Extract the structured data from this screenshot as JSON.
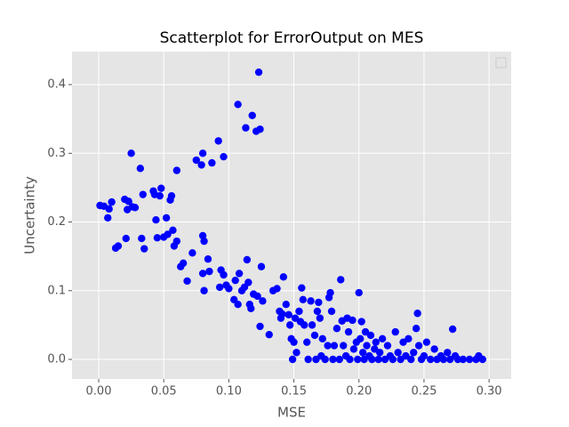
{
  "chart_data": {
    "type": "scatter",
    "title": "Scatterplot for ErrorOutput on MES",
    "x_label": "MSE",
    "y_label": "Uncertainty",
    "color": "#0000ff",
    "grid": true,
    "xlim": [
      -0.0205,
      0.317
    ],
    "ylim": [
      -0.0285,
      0.448
    ],
    "xticks": [
      {
        "value": 0,
        "label": "0.00"
      },
      0.05,
      {
        "value": 0.1,
        "label": "0.10"
      },
      0.15,
      {
        "value": 0.2,
        "label": "0.20"
      },
      0.25,
      {
        "value": 0.3,
        "label": "0.30"
      }
    ],
    "yticks": [
      {
        "value": 0,
        "label": "0.0"
      },
      0.1,
      0.2,
      0.3,
      0.4
    ],
    "x": [
      0.001,
      0.004,
      0.007,
      0.008,
      0.01,
      0.013,
      0.015,
      0.02,
      0.021,
      0.022,
      0.023,
      0.025,
      0.026,
      0.028,
      0.032,
      0.033,
      0.034,
      0.035,
      0.042,
      0.043,
      0.044,
      0.045,
      0.047,
      0.048,
      0.05,
      0.052,
      0.053,
      0.055,
      0.056,
      0.057,
      0.058,
      0.06,
      0.06,
      0.063,
      0.065,
      0.068,
      0.072,
      0.075,
      0.079,
      0.08,
      0.08,
      0.081,
      0.08,
      0.081,
      0.084,
      0.085,
      0.087,
      0.092,
      0.093,
      0.094,
      0.096,
      0.096,
      0.098,
      0.1,
      0.104,
      0.105,
      0.107,
      0.107,
      0.108,
      0.11,
      0.112,
      0.113,
      0.114,
      0.115,
      0.116,
      0.117,
      0.118,
      0.119,
      0.121,
      0.122,
      0.123,
      0.124,
      0.125,
      0.124,
      0.126,
      0.131,
      0.134,
      0.137,
      0.139,
      0.14,
      0.141,
      0.142,
      0.144,
      0.146,
      0.147,
      0.148,
      0.149,
      0.15,
      0.151,
      0.152,
      0.154,
      0.155,
      0.156,
      0.157,
      0.158,
      0.16,
      0.161,
      0.163,
      0.164,
      0.166,
      0.167,
      0.168,
      0.169,
      0.17,
      0.171,
      0.172,
      0.174,
      0.176,
      0.177,
      0.178,
      0.179,
      0.18,
      0.181,
      0.183,
      0.185,
      0.186,
      0.187,
      0.188,
      0.19,
      0.191,
      0.192,
      0.193,
      0.195,
      0.196,
      0.198,
      0.199,
      0.2,
      0.201,
      0.202,
      0.203,
      0.204,
      0.205,
      0.206,
      0.208,
      0.209,
      0.21,
      0.212,
      0.213,
      0.215,
      0.216,
      0.218,
      0.22,
      0.222,
      0.224,
      0.226,
      0.228,
      0.23,
      0.232,
      0.234,
      0.236,
      0.238,
      0.24,
      0.242,
      0.244,
      0.245,
      0.246,
      0.248,
      0.25,
      0.252,
      0.255,
      0.258,
      0.26,
      0.263,
      0.265,
      0.268,
      0.27,
      0.272,
      0.274,
      0.276,
      0.28,
      0.285,
      0.29,
      0.292,
      0.295
    ],
    "values": [
      0.224,
      0.223,
      0.206,
      0.219,
      0.229,
      0.162,
      0.165,
      0.233,
      0.176,
      0.218,
      0.23,
      0.3,
      0.222,
      0.221,
      0.278,
      0.176,
      0.24,
      0.161,
      0.245,
      0.24,
      0.203,
      0.177,
      0.238,
      0.249,
      0.178,
      0.206,
      0.182,
      0.232,
      0.238,
      0.188,
      0.165,
      0.275,
      0.172,
      0.135,
      0.14,
      0.114,
      0.155,
      0.29,
      0.283,
      0.3,
      0.18,
      0.172,
      0.125,
      0.1,
      0.146,
      0.128,
      0.286,
      0.318,
      0.105,
      0.13,
      0.295,
      0.123,
      0.108,
      0.103,
      0.087,
      0.115,
      0.371,
      0.08,
      0.125,
      0.1,
      0.105,
      0.337,
      0.145,
      0.112,
      0.08,
      0.074,
      0.355,
      0.095,
      0.332,
      0.092,
      0.418,
      0.335,
      0.135,
      0.048,
      0.085,
      0.036,
      0.1,
      0.103,
      0.07,
      0.06,
      0.066,
      0.12,
      0.08,
      0.065,
      0.05,
      0.03,
      0.0,
      0.025,
      0.06,
      0.01,
      0.07,
      0.055,
      0.104,
      0.087,
      0.05,
      0.025,
      0.0,
      0.085,
      0.05,
      0.035,
      0.0,
      0.07,
      0.083,
      0.06,
      0.005,
      0.03,
      0.0,
      0.02,
      0.09,
      0.097,
      0.07,
      0.0,
      0.02,
      0.045,
      0.0,
      0.116,
      0.056,
      0.02,
      0.005,
      0.06,
      0.04,
      0.0,
      0.057,
      0.015,
      0.025,
      0.0,
      0.097,
      0.03,
      0.055,
      0.01,
      0.0,
      0.04,
      0.02,
      0.005,
      0.035,
      0.0,
      0.015,
      0.025,
      0.0,
      0.01,
      0.03,
      0.0,
      0.02,
      0.005,
      0.0,
      0.04,
      0.01,
      0.0,
      0.025,
      0.005,
      0.03,
      0.0,
      0.01,
      0.045,
      0.067,
      0.02,
      0.0,
      0.005,
      0.025,
      0.0,
      0.015,
      0.0,
      0.005,
      0.0,
      0.01,
      0.0,
      0.044,
      0.005,
      0.0,
      0.0,
      0.0,
      0.0,
      0.005,
      0.0
    ]
  }
}
